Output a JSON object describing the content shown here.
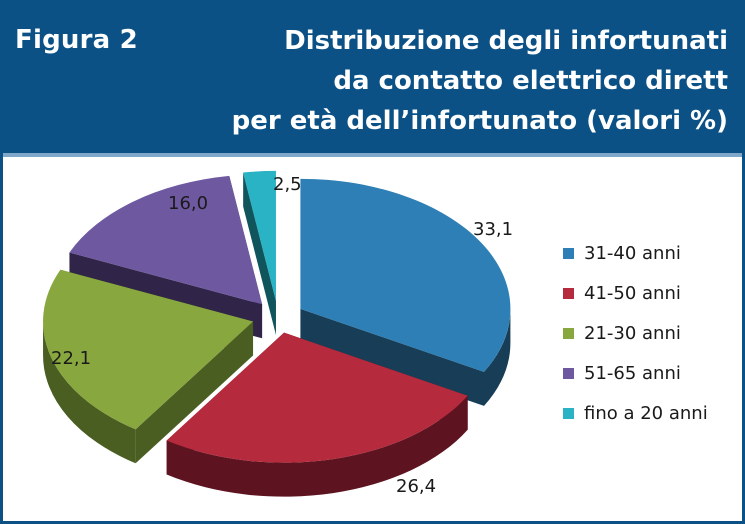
{
  "header": {
    "label": "Figura 2",
    "title_lines": [
      "Distribuzione degli infortunati",
      "da contatto elettrico dirett",
      "per età dell’infortunato (valori %)"
    ]
  },
  "colors": {
    "header_bg": "#0b5185",
    "frame_border": "#0b5185"
  },
  "chart_data": {
    "type": "pie",
    "style": "3d-exploded",
    "title": "",
    "legend_position": "right",
    "categories": [
      "31-40 anni",
      "41-50 anni",
      "21-30 anni",
      "51-65 anni",
      "fino a 20 anni"
    ],
    "values": [
      33.1,
      26.4,
      22.1,
      16.0,
      2.5
    ],
    "labels": [
      "33,1",
      "26,4",
      "22,1",
      "16,0",
      "2,5"
    ],
    "colors": [
      "#2d7fb5",
      "#b62a3d",
      "#88a83f",
      "#6e58a0",
      "#29b3c4"
    ],
    "side_colors": [
      "#173d57",
      "#5e1420",
      "#4a5e22",
      "#302548",
      "#10545c"
    ]
  }
}
